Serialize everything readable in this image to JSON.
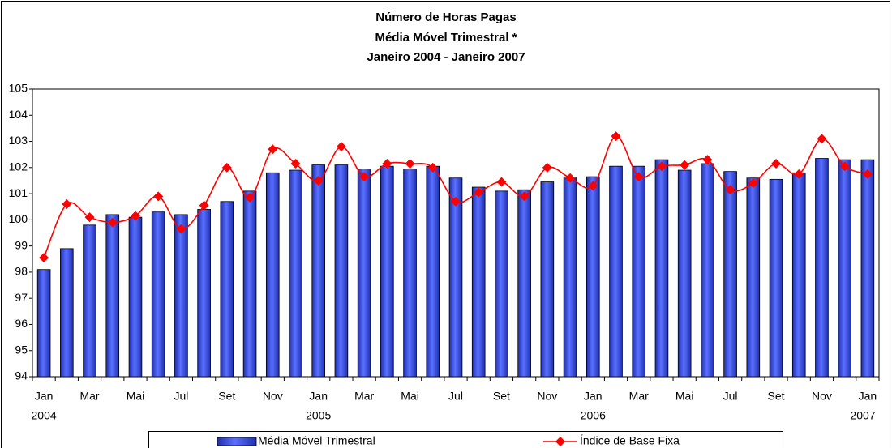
{
  "chart_data": {
    "type": "bar",
    "title": [
      "Número de Horas Pagas",
      "Média Móvel Trimestral *",
      "Janeiro 2004 - Janeiro 2007"
    ],
    "categories": [
      "Jan",
      null,
      "Mar",
      null,
      "Mai",
      null,
      "Jul",
      null,
      "Set",
      null,
      "Nov",
      null,
      "Jan",
      null,
      "Mar",
      null,
      "Mai",
      null,
      "Jul",
      null,
      "Set",
      null,
      "Nov",
      null,
      "Jan",
      null,
      "Mar",
      null,
      "Mai",
      null,
      "Jul",
      null,
      "Set",
      null,
      "Nov",
      null,
      "Jan"
    ],
    "years": [
      "2004",
      null,
      null,
      null,
      null,
      null,
      null,
      null,
      null,
      null,
      null,
      null,
      "2005",
      null,
      null,
      null,
      null,
      null,
      null,
      null,
      null,
      null,
      null,
      null,
      "2006",
      null,
      null,
      null,
      null,
      null,
      null,
      null,
      null,
      null,
      null,
      null,
      "2007"
    ],
    "series": [
      {
        "name": "Média Móvel Trimestral",
        "type": "bar",
        "color": "#3a50e8",
        "values": [
          98.1,
          98.9,
          99.8,
          100.2,
          100.1,
          100.3,
          100.2,
          100.4,
          100.7,
          101.1,
          101.8,
          101.9,
          102.1,
          102.1,
          101.95,
          102.05,
          101.95,
          102.05,
          101.6,
          101.25,
          101.1,
          101.15,
          101.45,
          101.6,
          101.65,
          102.05,
          102.05,
          102.3,
          101.9,
          102.15,
          101.85,
          101.6,
          101.55,
          101.8,
          102.35,
          102.3,
          102.3
        ]
      },
      {
        "name": "Índice de Base Fixa",
        "type": "line",
        "color": "#ff0000",
        "values": [
          98.55,
          100.6,
          100.1,
          99.9,
          100.15,
          100.9,
          99.65,
          100.55,
          102.0,
          100.85,
          102.7,
          102.15,
          101.5,
          102.8,
          101.65,
          102.15,
          102.15,
          102.0,
          100.7,
          101.05,
          101.45,
          100.9,
          102.0,
          101.6,
          101.3,
          103.2,
          101.65,
          102.05,
          102.1,
          102.3,
          101.15,
          101.4,
          102.15,
          101.75,
          103.1,
          102.05,
          101.75
        ]
      }
    ],
    "ylim": [
      94,
      105
    ],
    "yticks": [
      94,
      95,
      96,
      97,
      98,
      99,
      100,
      101,
      102,
      103,
      104,
      105
    ],
    "grid": false,
    "legend": "bottom"
  }
}
